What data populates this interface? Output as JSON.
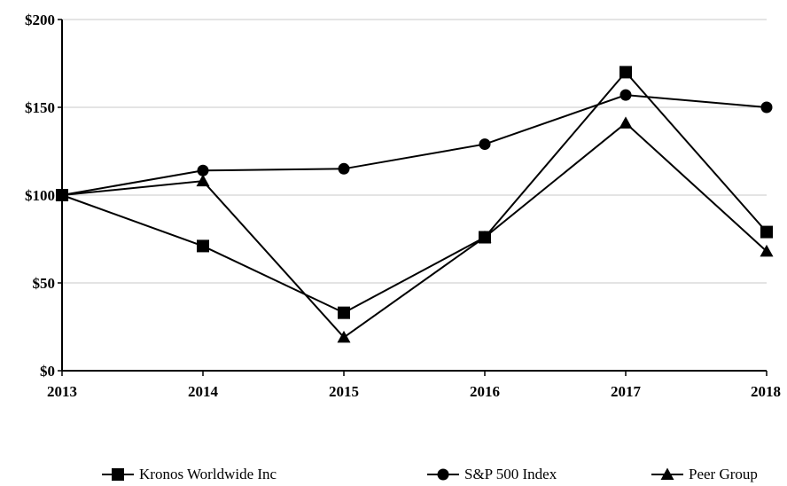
{
  "chart_data": {
    "type": "line",
    "x": [
      "2013",
      "2014",
      "2015",
      "2016",
      "2017",
      "2018"
    ],
    "ylim": [
      0,
      200
    ],
    "y_ticks": [
      0,
      50,
      100,
      150,
      200
    ],
    "y_tick_labels": [
      "$0",
      "$50",
      "$100",
      "$150",
      "$200"
    ],
    "grid": true,
    "legend_position": "bottom",
    "series": [
      {
        "name": "Kronos Worldwide Inc",
        "marker": "square",
        "color": "#000000",
        "values": [
          100,
          71,
          33,
          76,
          170,
          79
        ]
      },
      {
        "name": "S&P 500 Index",
        "marker": "circle",
        "color": "#000000",
        "values": [
          100,
          114,
          115,
          129,
          157,
          150
        ]
      },
      {
        "name": "Peer Group",
        "marker": "triangle",
        "color": "#000000",
        "values": [
          100,
          108,
          19,
          76,
          141,
          68
        ]
      }
    ]
  }
}
